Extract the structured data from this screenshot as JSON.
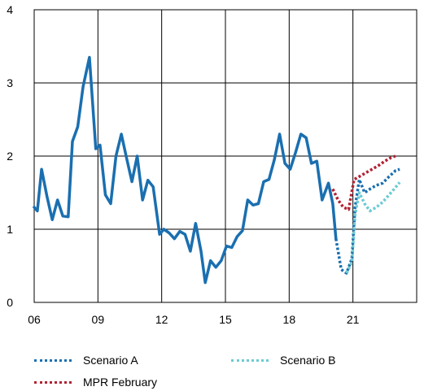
{
  "chart_data": {
    "type": "line",
    "title": "",
    "xlabel": "",
    "ylabel": "",
    "xlim": [
      2006,
      2024
    ],
    "ylim": [
      0,
      4
    ],
    "x_ticks": [
      {
        "value": 2006,
        "label": "06"
      },
      {
        "value": 2009,
        "label": "09"
      },
      {
        "value": 2012,
        "label": "12"
      },
      {
        "value": 2015,
        "label": "15"
      },
      {
        "value": 2018,
        "label": "18"
      },
      {
        "value": 2021,
        "label": "21"
      }
    ],
    "y_ticks": [
      {
        "value": 0,
        "label": "0"
      },
      {
        "value": 1,
        "label": "1"
      },
      {
        "value": 2,
        "label": "2"
      },
      {
        "value": 3,
        "label": "3"
      },
      {
        "value": 4,
        "label": "4"
      }
    ],
    "grid": true,
    "legend_position": "bottom",
    "series": [
      {
        "name": "",
        "style": "solid",
        "color": "#1a6fb0",
        "points": [
          [
            2006.0,
            1.3
          ],
          [
            2006.15,
            1.25
          ],
          [
            2006.35,
            1.82
          ],
          [
            2006.6,
            1.45
          ],
          [
            2006.85,
            1.13
          ],
          [
            2007.1,
            1.4
          ],
          [
            2007.35,
            1.18
          ],
          [
            2007.6,
            1.17
          ],
          [
            2007.8,
            2.2
          ],
          [
            2008.05,
            2.4
          ],
          [
            2008.3,
            2.95
          ],
          [
            2008.6,
            3.35
          ],
          [
            2008.9,
            2.1
          ],
          [
            2009.1,
            2.15
          ],
          [
            2009.35,
            1.47
          ],
          [
            2009.6,
            1.35
          ],
          [
            2009.85,
            2.0
          ],
          [
            2010.1,
            2.3
          ],
          [
            2010.35,
            1.97
          ],
          [
            2010.6,
            1.65
          ],
          [
            2010.85,
            2.0
          ],
          [
            2011.1,
            1.4
          ],
          [
            2011.35,
            1.67
          ],
          [
            2011.6,
            1.58
          ],
          [
            2011.9,
            0.93
          ],
          [
            2012.1,
            1.0
          ],
          [
            2012.35,
            0.95
          ],
          [
            2012.6,
            0.87
          ],
          [
            2012.85,
            0.97
          ],
          [
            2013.1,
            0.93
          ],
          [
            2013.35,
            0.7
          ],
          [
            2013.6,
            1.08
          ],
          [
            2013.85,
            0.7
          ],
          [
            2014.05,
            0.27
          ],
          [
            2014.3,
            0.57
          ],
          [
            2014.55,
            0.48
          ],
          [
            2014.8,
            0.57
          ],
          [
            2015.05,
            0.77
          ],
          [
            2015.3,
            0.75
          ],
          [
            2015.55,
            0.9
          ],
          [
            2015.8,
            0.98
          ],
          [
            2016.05,
            1.4
          ],
          [
            2016.3,
            1.33
          ],
          [
            2016.55,
            1.35
          ],
          [
            2016.8,
            1.65
          ],
          [
            2017.05,
            1.68
          ],
          [
            2017.3,
            1.95
          ],
          [
            2017.55,
            2.3
          ],
          [
            2017.8,
            1.9
          ],
          [
            2018.05,
            1.82
          ],
          [
            2018.3,
            2.05
          ],
          [
            2018.55,
            2.3
          ],
          [
            2018.8,
            2.25
          ],
          [
            2019.05,
            1.9
          ],
          [
            2019.3,
            1.93
          ],
          [
            2019.55,
            1.4
          ],
          [
            2019.85,
            1.63
          ],
          [
            2020.05,
            1.35
          ],
          [
            2020.2,
            0.87
          ]
        ]
      },
      {
        "name": "Scenario A",
        "style": "dotted",
        "color": "#1a6fb0",
        "points": [
          [
            2020.2,
            0.87
          ],
          [
            2020.45,
            0.45
          ],
          [
            2020.7,
            0.4
          ],
          [
            2020.95,
            0.6
          ],
          [
            2021.1,
            1.3
          ],
          [
            2021.3,
            1.68
          ],
          [
            2021.55,
            1.5
          ],
          [
            2021.8,
            1.55
          ],
          [
            2022.1,
            1.6
          ],
          [
            2022.4,
            1.63
          ],
          [
            2022.7,
            1.72
          ],
          [
            2023.0,
            1.8
          ],
          [
            2023.2,
            1.82
          ]
        ]
      },
      {
        "name": "Scenario B",
        "style": "dotted",
        "color": "#6ccbd2",
        "points": [
          [
            2020.7,
            0.4
          ],
          [
            2020.95,
            0.55
          ],
          [
            2021.1,
            1.2
          ],
          [
            2021.3,
            1.5
          ],
          [
            2021.55,
            1.35
          ],
          [
            2021.8,
            1.25
          ],
          [
            2022.1,
            1.3
          ],
          [
            2022.4,
            1.37
          ],
          [
            2022.7,
            1.47
          ],
          [
            2023.0,
            1.57
          ],
          [
            2023.2,
            1.64
          ]
        ]
      },
      {
        "name": "MPR February",
        "style": "dotted",
        "color": "#b22233",
        "points": [
          [
            2020.05,
            1.55
          ],
          [
            2020.3,
            1.4
          ],
          [
            2020.55,
            1.3
          ],
          [
            2020.8,
            1.27
          ],
          [
            2021.05,
            1.68
          ],
          [
            2021.3,
            1.72
          ],
          [
            2021.6,
            1.77
          ],
          [
            2021.9,
            1.82
          ],
          [
            2022.2,
            1.87
          ],
          [
            2022.5,
            1.93
          ],
          [
            2022.8,
            1.98
          ],
          [
            2023.0,
            2.0
          ]
        ]
      }
    ]
  },
  "legend": {
    "scenario_a": "Scenario A",
    "scenario_b": "Scenario B",
    "mpr_february": "MPR February"
  }
}
